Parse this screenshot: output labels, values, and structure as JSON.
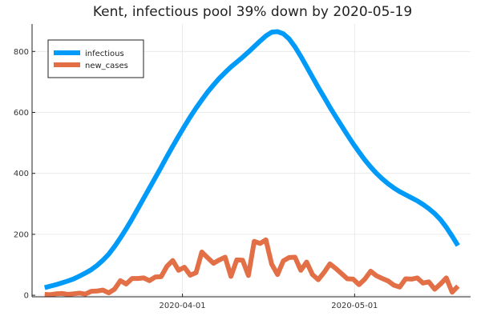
{
  "chart_data": {
    "type": "line",
    "title": "Kent, infectious pool 39% down by 2020-05-19",
    "xlabel": "",
    "ylabel": "",
    "x_start": "2020-03-08",
    "x_end": "2020-05-19",
    "xlim": [
      "2020-03-08",
      "2020-05-19"
    ],
    "ylim": [
      -5,
      890
    ],
    "xticks": [
      {
        "date": "2020-04-01",
        "label": "2020-04-01"
      },
      {
        "date": "2020-05-01",
        "label": "2020-05-01"
      }
    ],
    "yticks": [
      0,
      200,
      400,
      600,
      800
    ],
    "grid": true,
    "legend_position": "top-left",
    "series": [
      {
        "name": "infectious",
        "color": "#009af9",
        "values": [
          25,
          30,
          35,
          41,
          47,
          54,
          63,
          73,
          84,
          98,
          115,
          135,
          160,
          188,
          218,
          250,
          284,
          318,
          352,
          386,
          420,
          455,
          489,
          522,
          554,
          585,
          614,
          641,
          667,
          690,
          712,
          731,
          749,
          765,
          781,
          798,
          816,
          834,
          851,
          863,
          865,
          858,
          841,
          815,
          784,
          750,
          716,
          682,
          650,
          617,
          586,
          556,
          526,
          497,
          470,
          444,
          421,
          400,
          382,
          366,
          352,
          340,
          330,
          320,
          310,
          298,
          284,
          268,
          248,
          223,
          194,
          163
        ]
      },
      {
        "name": "new_cases",
        "color": "#e26f46",
        "values": [
          3,
          2,
          5,
          6,
          3,
          5,
          7,
          4,
          13,
          14,
          17,
          8,
          20,
          48,
          37,
          55,
          55,
          57,
          48,
          60,
          61,
          95,
          114,
          82,
          92,
          66,
          74,
          142,
          123,
          105,
          116,
          125,
          62,
          116,
          115,
          65,
          177,
          170,
          182,
          102,
          68,
          113,
          124,
          125,
          82,
          109,
          68,
          51,
          75,
          103,
          88,
          71,
          54,
          53,
          35,
          53,
          79,
          64,
          55,
          47,
          33,
          27,
          54,
          53,
          57,
          40,
          44,
          20,
          37,
          57,
          10,
          30
        ]
      }
    ]
  }
}
